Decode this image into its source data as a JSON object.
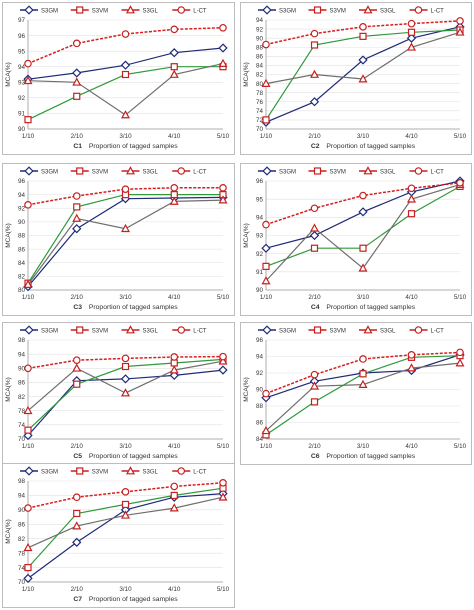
{
  "legend": [
    "S3GM",
    "S3VM",
    "S3GL",
    "L-CT"
  ],
  "colors": {
    "S3GM": "#1f2a78",
    "S3VM": "#2e9a3a",
    "S3GL": "#6e6e6e",
    "L-CT": "#d81e1e"
  },
  "chart_data": [
    {
      "type": "line",
      "caption_id": "C1",
      "caption_text": "Proportion of tagged samples",
      "ylabel": "MCA(%)",
      "categories": [
        "1/10",
        "2/10",
        "3/10",
        "4/10",
        "5/10"
      ],
      "ylim": [
        90,
        97
      ],
      "yticks": [
        90,
        91,
        92,
        93,
        94,
        95,
        96,
        97
      ],
      "series": [
        {
          "name": "S3GM",
          "values": [
            93.2,
            93.6,
            94.1,
            94.9,
            95.2
          ]
        },
        {
          "name": "S3VM",
          "values": [
            90.6,
            92.1,
            93.5,
            94.0,
            94.0
          ]
        },
        {
          "name": "S3GL",
          "values": [
            93.1,
            93.0,
            90.9,
            93.5,
            94.2
          ]
        },
        {
          "name": "L-CT",
          "values": [
            94.2,
            95.5,
            96.1,
            96.4,
            96.5
          ]
        }
      ]
    },
    {
      "type": "line",
      "caption_id": "C2",
      "caption_text": "Proportion of tagged samples",
      "ylabel": "MCA(%)",
      "categories": [
        "1/10",
        "2/10",
        "3/10",
        "4/10",
        "5/10"
      ],
      "ylim": [
        70,
        94
      ],
      "yticks": [
        70,
        72,
        74,
        76,
        78,
        80,
        82,
        84,
        86,
        88,
        90,
        92,
        94
      ],
      "series": [
        {
          "name": "S3GM",
          "values": [
            71.5,
            76.0,
            85.2,
            90.0,
            92.5
          ]
        },
        {
          "name": "S3VM",
          "values": [
            72.0,
            88.5,
            90.4,
            91.3,
            91.8
          ]
        },
        {
          "name": "S3GL",
          "values": [
            80.0,
            82.0,
            81.0,
            88.0,
            91.3
          ]
        },
        {
          "name": "L-CT",
          "values": [
            88.6,
            91.0,
            92.5,
            93.2,
            93.8
          ]
        }
      ]
    },
    {
      "type": "line",
      "caption_id": "C3",
      "caption_text": "Proportion of tagged samples",
      "ylabel": "MCA(%)",
      "categories": [
        "1/10",
        "2/10",
        "3/10",
        "4/10",
        "5/10"
      ],
      "ylim": [
        80,
        96
      ],
      "yticks": [
        80,
        82,
        84,
        86,
        88,
        90,
        92,
        94,
        96
      ],
      "series": [
        {
          "name": "S3GM",
          "values": [
            80.5,
            89.0,
            93.4,
            93.5,
            93.6
          ]
        },
        {
          "name": "S3VM",
          "values": [
            81.0,
            92.2,
            94.0,
            94.0,
            94.0
          ]
        },
        {
          "name": "S3GL",
          "values": [
            80.8,
            90.5,
            89.0,
            93.0,
            93.2
          ]
        },
        {
          "name": "L-CT",
          "values": [
            92.5,
            93.8,
            94.8,
            95.0,
            95.0
          ]
        }
      ]
    },
    {
      "type": "line",
      "caption_id": "C4",
      "caption_text": "Proportion of tagged samples",
      "ylabel": "MCA(%)",
      "categories": [
        "1/10",
        "2/10",
        "3/10",
        "4/10",
        "5/10"
      ],
      "ylim": [
        90,
        96
      ],
      "yticks": [
        90,
        91,
        92,
        93,
        94,
        95,
        96
      ],
      "series": [
        {
          "name": "S3GM",
          "values": [
            92.3,
            93.0,
            94.3,
            95.4,
            96.0
          ]
        },
        {
          "name": "S3VM",
          "values": [
            91.3,
            92.3,
            92.3,
            94.2,
            95.7
          ]
        },
        {
          "name": "S3GL",
          "values": [
            90.5,
            93.4,
            91.2,
            95.0,
            95.8
          ]
        },
        {
          "name": "L-CT",
          "values": [
            93.6,
            94.5,
            95.2,
            95.6,
            95.9
          ]
        }
      ]
    },
    {
      "type": "line",
      "caption_id": "C5",
      "caption_text": "Proportion of tagged samples",
      "ylabel": "MCA(%)",
      "categories": [
        "1/10",
        "2/10",
        "3/10",
        "4/10",
        "5/10"
      ],
      "ylim": [
        70,
        98
      ],
      "yticks": [
        70,
        74,
        78,
        82,
        86,
        90,
        94,
        98
      ],
      "series": [
        {
          "name": "S3GM",
          "values": [
            71.0,
            86.5,
            87.0,
            88.0,
            89.5
          ]
        },
        {
          "name": "S3VM",
          "values": [
            72.5,
            85.5,
            90.5,
            91.5,
            92.5
          ]
        },
        {
          "name": "S3GL",
          "values": [
            78.0,
            90.0,
            83.0,
            89.5,
            92.0
          ]
        },
        {
          "name": "L-CT",
          "values": [
            90.0,
            92.3,
            92.8,
            93.2,
            93.3
          ]
        }
      ]
    },
    {
      "type": "line",
      "caption_id": "C6",
      "caption_text": "Proportion of tagged samples",
      "ylabel": "MCA(%)",
      "categories": [
        "1/10",
        "2/10",
        "3/10",
        "4/10",
        "5/10"
      ],
      "ylim": [
        84,
        96
      ],
      "yticks": [
        84,
        86,
        88,
        90,
        92,
        94,
        96
      ],
      "series": [
        {
          "name": "S3GM",
          "values": [
            89.0,
            91.0,
            92.0,
            92.3,
            94.2
          ]
        },
        {
          "name": "S3VM",
          "values": [
            84.5,
            88.5,
            91.9,
            93.9,
            94.1
          ]
        },
        {
          "name": "S3GL",
          "values": [
            85.0,
            90.4,
            90.6,
            92.6,
            93.2
          ]
        },
        {
          "name": "L-CT",
          "values": [
            89.5,
            91.8,
            93.7,
            94.2,
            94.5
          ]
        }
      ]
    },
    {
      "type": "line",
      "caption_id": "C7",
      "caption_text": "Proportion of tagged samples",
      "ylabel": "MCA(%)",
      "categories": [
        "1/10",
        "2/10",
        "3/10",
        "4/10",
        "5/10"
      ],
      "ylim": [
        70,
        98
      ],
      "yticks": [
        70,
        74,
        78,
        82,
        86,
        90,
        94,
        98
      ],
      "series": [
        {
          "name": "S3GM",
          "values": [
            71.0,
            81.0,
            90.0,
            93.5,
            94.5
          ]
        },
        {
          "name": "S3VM",
          "values": [
            74.0,
            89.0,
            91.5,
            94.0,
            96.0
          ]
        },
        {
          "name": "S3GL",
          "values": [
            79.5,
            85.5,
            88.5,
            90.5,
            93.5
          ]
        },
        {
          "name": "L-CT",
          "values": [
            90.5,
            93.5,
            95.0,
            96.5,
            97.5
          ]
        }
      ]
    }
  ]
}
